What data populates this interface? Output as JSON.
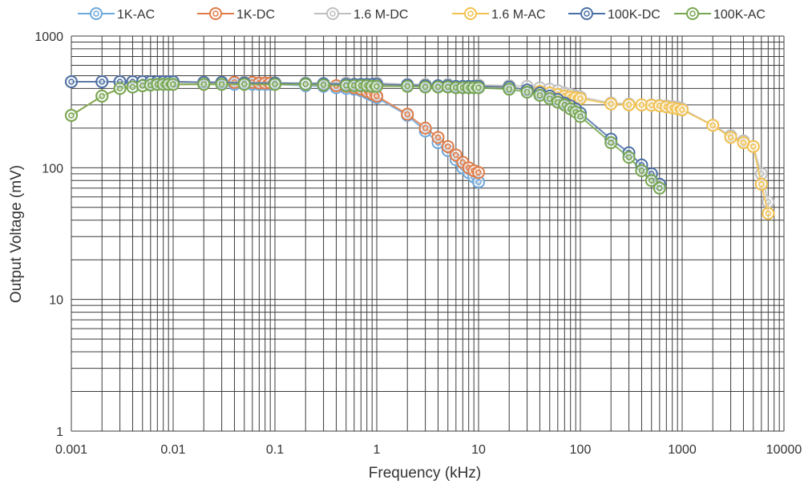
{
  "chart_data": {
    "type": "scatter",
    "title": "",
    "xlabel": "Frequency (kHz)",
    "ylabel": "Output Voltage (mV)",
    "x_scale": "log",
    "y_scale": "log",
    "xlim": [
      0.001,
      10000
    ],
    "ylim": [
      1,
      1000
    ],
    "x_ticks": [
      "0.001",
      "0.01",
      "0.1",
      "1",
      "10",
      "100",
      "1000",
      "10000"
    ],
    "y_ticks": [
      "1",
      "10",
      "100",
      "1000"
    ],
    "grid": true,
    "legend_position": "top",
    "series": [
      {
        "name": "1K-AC",
        "color": "#6fa8dc",
        "points": [
          [
            0.001,
            250
          ],
          [
            0.002,
            350
          ],
          [
            0.003,
            400
          ],
          [
            0.004,
            410
          ],
          [
            0.005,
            420
          ],
          [
            0.006,
            430
          ],
          [
            0.007,
            430
          ],
          [
            0.008,
            430
          ],
          [
            0.009,
            430
          ],
          [
            0.01,
            430
          ],
          [
            0.02,
            430
          ],
          [
            0.03,
            430
          ],
          [
            0.04,
            430
          ],
          [
            0.05,
            430
          ],
          [
            0.06,
            430
          ],
          [
            0.07,
            430
          ],
          [
            0.08,
            430
          ],
          [
            0.09,
            430
          ],
          [
            0.1,
            430
          ],
          [
            0.2,
            420
          ],
          [
            0.3,
            415
          ],
          [
            0.4,
            405
          ],
          [
            0.5,
            400
          ],
          [
            0.6,
            395
          ],
          [
            0.7,
            385
          ],
          [
            0.8,
            370
          ],
          [
            0.9,
            355
          ],
          [
            1,
            340
          ],
          [
            2,
            250
          ],
          [
            3,
            190
          ],
          [
            4,
            155
          ],
          [
            5,
            135
          ],
          [
            6,
            115
          ],
          [
            7,
            100
          ],
          [
            8,
            92
          ],
          [
            9,
            85
          ],
          [
            10,
            78
          ]
        ]
      },
      {
        "name": "1K-DC",
        "color": "#e07b46",
        "points": [
          [
            0.001,
            450
          ],
          [
            0.002,
            450
          ],
          [
            0.003,
            450
          ],
          [
            0.004,
            450
          ],
          [
            0.005,
            450
          ],
          [
            0.006,
            450
          ],
          [
            0.007,
            450
          ],
          [
            0.008,
            450
          ],
          [
            0.009,
            450
          ],
          [
            0.01,
            450
          ],
          [
            0.02,
            445
          ],
          [
            0.03,
            445
          ],
          [
            0.04,
            445
          ],
          [
            0.05,
            445
          ],
          [
            0.06,
            445
          ],
          [
            0.07,
            440
          ],
          [
            0.08,
            440
          ],
          [
            0.09,
            440
          ],
          [
            0.1,
            440
          ],
          [
            0.2,
            430
          ],
          [
            0.3,
            425
          ],
          [
            0.4,
            420
          ],
          [
            0.5,
            415
          ],
          [
            0.6,
            405
          ],
          [
            0.7,
            395
          ],
          [
            0.8,
            380
          ],
          [
            0.9,
            365
          ],
          [
            1,
            350
          ],
          [
            2,
            255
          ],
          [
            3,
            200
          ],
          [
            4,
            170
          ],
          [
            5,
            145
          ],
          [
            6,
            125
          ],
          [
            7,
            110
          ],
          [
            8,
            100
          ],
          [
            9,
            95
          ],
          [
            10,
            92
          ]
        ]
      },
      {
        "name": "1.6 M-DC",
        "color": "#bfbfbf",
        "points": [
          [
            0.001,
            450
          ],
          [
            0.002,
            450
          ],
          [
            0.003,
            450
          ],
          [
            0.005,
            450
          ],
          [
            0.01,
            450
          ],
          [
            0.02,
            445
          ],
          [
            0.05,
            445
          ],
          [
            0.1,
            440
          ],
          [
            0.2,
            440
          ],
          [
            0.5,
            440
          ],
          [
            1,
            440
          ],
          [
            2,
            430
          ],
          [
            3,
            430
          ],
          [
            5,
            430
          ],
          [
            10,
            425
          ],
          [
            20,
            420
          ],
          [
            30,
            415
          ],
          [
            40,
            405
          ],
          [
            50,
            395
          ],
          [
            60,
            385
          ],
          [
            70,
            370
          ],
          [
            80,
            360
          ],
          [
            90,
            350
          ],
          [
            100,
            345
          ],
          [
            200,
            310
          ],
          [
            300,
            305
          ],
          [
            400,
            300
          ],
          [
            500,
            300
          ],
          [
            600,
            298
          ],
          [
            700,
            295
          ],
          [
            800,
            292
          ],
          [
            900,
            288
          ],
          [
            1000,
            280
          ],
          [
            2000,
            210
          ],
          [
            3000,
            175
          ],
          [
            4000,
            160
          ],
          [
            5000,
            145
          ],
          [
            6000,
            90
          ],
          [
            7000,
            55
          ]
        ]
      },
      {
        "name": "1.6 M-AC",
        "color": "#f2c14e",
        "points": [
          [
            0.001,
            250
          ],
          [
            0.002,
            350
          ],
          [
            0.003,
            400
          ],
          [
            0.005,
            420
          ],
          [
            0.01,
            430
          ],
          [
            0.02,
            430
          ],
          [
            0.05,
            430
          ],
          [
            0.1,
            430
          ],
          [
            0.2,
            430
          ],
          [
            0.5,
            425
          ],
          [
            1,
            425
          ],
          [
            2,
            420
          ],
          [
            3,
            420
          ],
          [
            5,
            420
          ],
          [
            10,
            415
          ],
          [
            20,
            410
          ],
          [
            30,
            390
          ],
          [
            40,
            380
          ],
          [
            50,
            370
          ],
          [
            60,
            360
          ],
          [
            70,
            350
          ],
          [
            80,
            345
          ],
          [
            90,
            340
          ],
          [
            100,
            335
          ],
          [
            200,
            305
          ],
          [
            300,
            300
          ],
          [
            400,
            300
          ],
          [
            500,
            298
          ],
          [
            600,
            295
          ],
          [
            700,
            290
          ],
          [
            800,
            285
          ],
          [
            900,
            280
          ],
          [
            1000,
            275
          ],
          [
            2000,
            210
          ],
          [
            3000,
            170
          ],
          [
            4000,
            155
          ],
          [
            5000,
            145
          ],
          [
            6000,
            75
          ],
          [
            7000,
            45
          ]
        ]
      },
      {
        "name": "100K-DC",
        "color": "#4a6fa5",
        "points": [
          [
            0.001,
            450
          ],
          [
            0.002,
            450
          ],
          [
            0.003,
            450
          ],
          [
            0.004,
            450
          ],
          [
            0.005,
            450
          ],
          [
            0.006,
            450
          ],
          [
            0.007,
            450
          ],
          [
            0.008,
            450
          ],
          [
            0.009,
            450
          ],
          [
            0.01,
            450
          ],
          [
            0.02,
            445
          ],
          [
            0.03,
            445
          ],
          [
            0.05,
            440
          ],
          [
            0.1,
            440
          ],
          [
            0.2,
            435
          ],
          [
            0.3,
            435
          ],
          [
            0.5,
            430
          ],
          [
            0.6,
            430
          ],
          [
            0.7,
            430
          ],
          [
            0.8,
            430
          ],
          [
            0.9,
            430
          ],
          [
            1,
            430
          ],
          [
            2,
            425
          ],
          [
            3,
            420
          ],
          [
            4,
            420
          ],
          [
            5,
            420
          ],
          [
            6,
            415
          ],
          [
            7,
            415
          ],
          [
            8,
            415
          ],
          [
            9,
            415
          ],
          [
            10,
            415
          ],
          [
            20,
            410
          ],
          [
            30,
            390
          ],
          [
            40,
            370
          ],
          [
            50,
            350
          ],
          [
            60,
            330
          ],
          [
            70,
            310
          ],
          [
            80,
            295
          ],
          [
            90,
            280
          ],
          [
            100,
            260
          ],
          [
            200,
            165
          ],
          [
            300,
            130
          ],
          [
            400,
            105
          ],
          [
            500,
            90
          ],
          [
            600,
            75
          ]
        ]
      },
      {
        "name": "100K-AC",
        "color": "#76a650",
        "points": [
          [
            0.001,
            250
          ],
          [
            0.002,
            350
          ],
          [
            0.003,
            400
          ],
          [
            0.004,
            410
          ],
          [
            0.005,
            420
          ],
          [
            0.006,
            425
          ],
          [
            0.007,
            430
          ],
          [
            0.008,
            430
          ],
          [
            0.009,
            430
          ],
          [
            0.01,
            430
          ],
          [
            0.02,
            430
          ],
          [
            0.03,
            430
          ],
          [
            0.05,
            430
          ],
          [
            0.1,
            430
          ],
          [
            0.2,
            430
          ],
          [
            0.3,
            425
          ],
          [
            0.5,
            420
          ],
          [
            0.6,
            420
          ],
          [
            0.7,
            420
          ],
          [
            0.8,
            420
          ],
          [
            0.9,
            415
          ],
          [
            1,
            415
          ],
          [
            2,
            415
          ],
          [
            3,
            410
          ],
          [
            4,
            410
          ],
          [
            5,
            410
          ],
          [
            6,
            405
          ],
          [
            7,
            405
          ],
          [
            8,
            405
          ],
          [
            9,
            405
          ],
          [
            10,
            405
          ],
          [
            20,
            395
          ],
          [
            30,
            375
          ],
          [
            40,
            355
          ],
          [
            50,
            335
          ],
          [
            60,
            315
          ],
          [
            70,
            300
          ],
          [
            80,
            280
          ],
          [
            90,
            265
          ],
          [
            100,
            245
          ],
          [
            200,
            155
          ],
          [
            300,
            120
          ],
          [
            400,
            95
          ],
          [
            500,
            80
          ],
          [
            600,
            70
          ]
        ]
      }
    ]
  }
}
